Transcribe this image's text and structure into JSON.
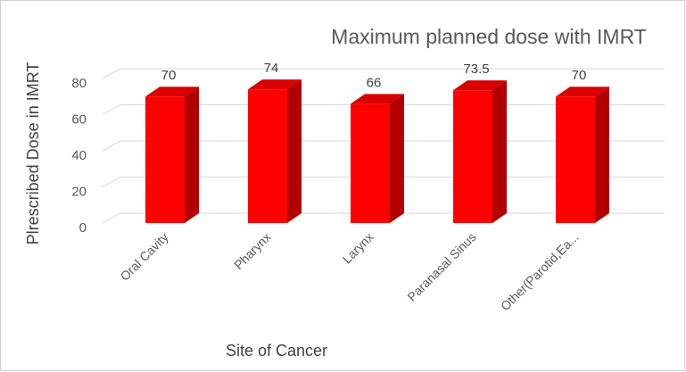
{
  "chart_data": {
    "type": "bar3d",
    "title": "Maximum planned dose with IMRT",
    "x_label": "Site of Cancer",
    "y_label": "Plrescribed Dose in IMRT",
    "categories": [
      "Oral Cavity",
      "Pharynx",
      "Larynx",
      "Paranasal Sinus",
      "Other(Parotid,Ea..."
    ],
    "values": [
      70,
      74,
      66,
      73.5,
      70
    ],
    "color": "#ff0000",
    "ylim": [
      0,
      80
    ],
    "yticks": [
      0,
      20,
      40,
      60,
      80
    ],
    "grid": true
  }
}
